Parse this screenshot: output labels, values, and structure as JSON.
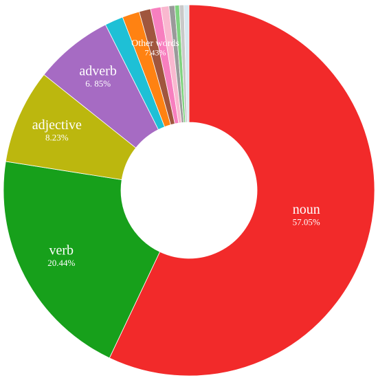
{
  "chart_data": {
    "type": "donut",
    "categories": [
      "noun",
      "verb",
      "adjective",
      "adverb",
      null,
      null,
      null,
      null,
      null,
      null,
      null,
      null,
      null
    ],
    "values": [
      57.05,
      20.44,
      8.23,
      6.85,
      1.6,
      1.5,
      1.0,
      0.9,
      0.7,
      0.5,
      0.4,
      0.4,
      0.43
    ],
    "value_labels": [
      "57.05%",
      "20.44%",
      "8.23%",
      "6. 85%",
      null,
      null,
      null,
      null,
      null,
      null,
      null,
      null,
      null
    ],
    "colors": [
      "#f22a2a",
      "#17a01b",
      "#bcb70e",
      "#a66bc3",
      "#1ec0d6",
      "#ff8212",
      "#a0563e",
      "#f77fbf",
      "#f9b8cf",
      "#9a9a9a",
      "#7fd37f",
      "#c9c9c9",
      "#d8e8f0"
    ],
    "group": {
      "label": "Other words",
      "value": 7.43,
      "value_label": "7.43%"
    }
  }
}
